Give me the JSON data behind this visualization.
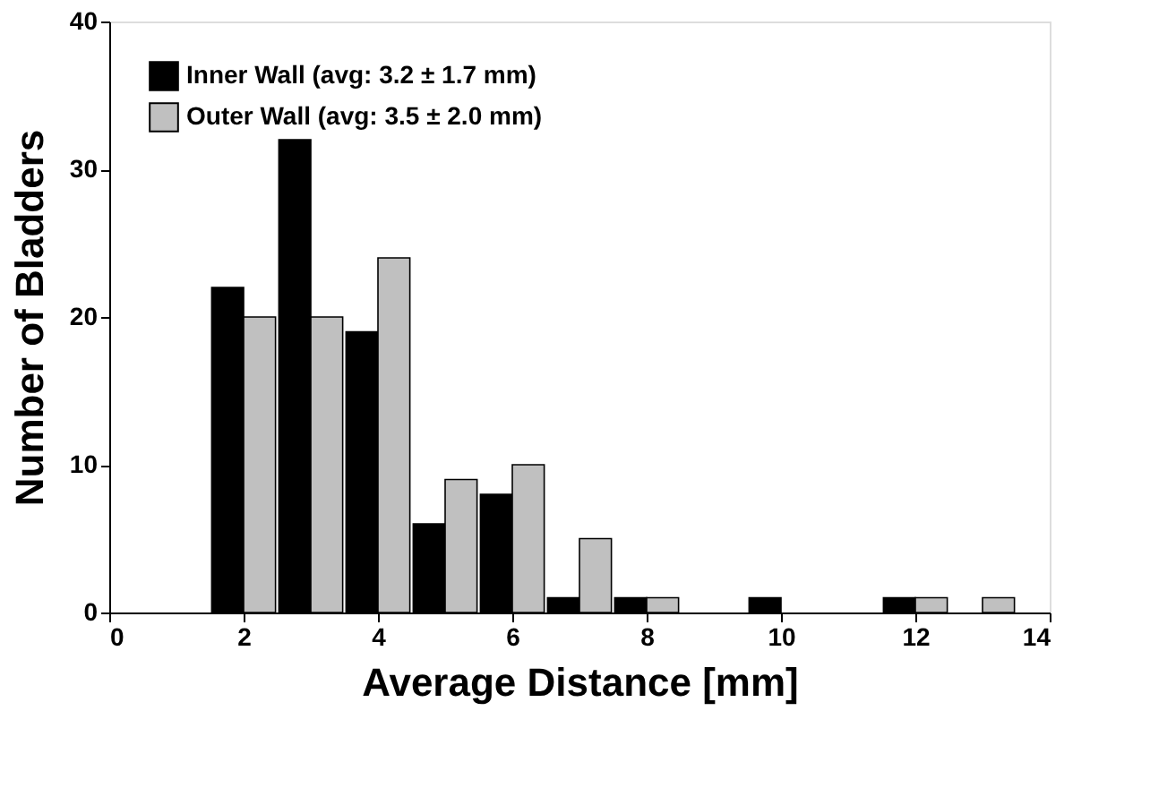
{
  "chart_data": {
    "type": "bar",
    "xlabel": "Average Distance [mm]",
    "ylabel": "Number of Bladders",
    "x": [
      2,
      3,
      4,
      5,
      6,
      7,
      8,
      9,
      10,
      11,
      12,
      13
    ],
    "series": [
      {
        "name": "Inner Wall (avg: 3.2 ± 1.7 mm)",
        "color": "#000000",
        "values": [
          22,
          32,
          19,
          6,
          8,
          1,
          1,
          0,
          1,
          0,
          1,
          0
        ]
      },
      {
        "name": "Outer Wall (avg: 3.5 ± 2.0 mm)",
        "color": "#c0c0c0",
        "values": [
          20,
          20,
          24,
          9,
          10,
          5,
          1,
          0,
          0,
          0,
          1,
          1
        ]
      }
    ],
    "xlim": [
      0,
      14
    ],
    "xticks": [
      0,
      2,
      4,
      6,
      8,
      10,
      12,
      14
    ],
    "ylim": [
      0,
      40
    ],
    "yticks": [
      0,
      10,
      20,
      30,
      40
    ],
    "grid": false,
    "legend": "top left"
  }
}
